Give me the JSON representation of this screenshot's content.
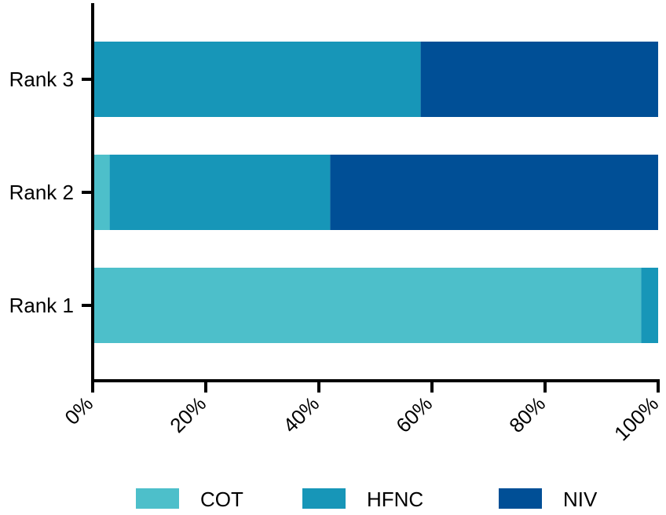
{
  "chart_data": {
    "type": "bar",
    "orientation": "horizontal",
    "stacked": true,
    "categories": [
      "Rank 1",
      "Rank 2",
      "Rank 3"
    ],
    "series": [
      {
        "name": "COT",
        "color": "#4dbfca",
        "values": [
          97,
          3,
          0
        ]
      },
      {
        "name": "HFNC",
        "color": "#1796b8",
        "values": [
          3,
          39,
          58
        ]
      },
      {
        "name": "NIV",
        "color": "#004f96",
        "values": [
          0,
          58,
          42
        ]
      }
    ],
    "x_ticks": [
      "0%",
      "20%",
      "40%",
      "60%",
      "80%",
      "100%"
    ],
    "xlim": [
      0,
      100
    ],
    "grid": false,
    "legend_position": "bottom"
  }
}
